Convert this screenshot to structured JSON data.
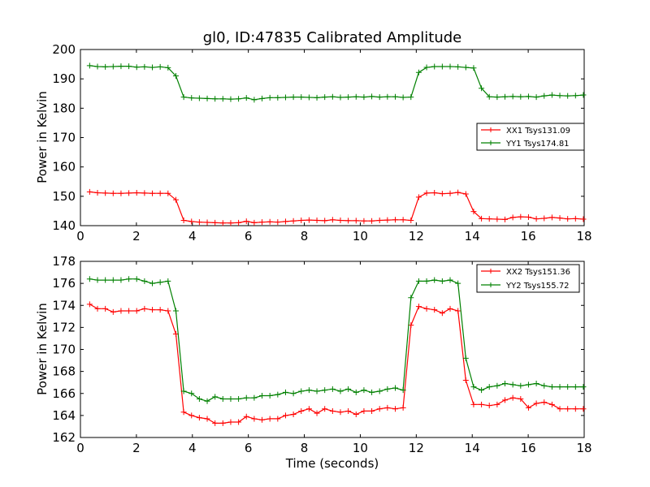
{
  "chart_data": [
    {
      "type": "line",
      "title": "gl0, ID:47835 Calibrated Amplitude",
      "xlabel": "",
      "ylabel": "Power in Kelvin",
      "xlim": [
        0,
        18
      ],
      "ylim": [
        140,
        200
      ],
      "xticks": [
        0,
        2,
        4,
        6,
        8,
        10,
        12,
        14,
        16,
        18
      ],
      "yticks": [
        140,
        150,
        160,
        170,
        180,
        190,
        200
      ],
      "grid": false,
      "legend_position": "right",
      "series": [
        {
          "name": "XX1 Tsys131.09",
          "color": "#ff0000",
          "x": [
            0.33,
            0.61,
            0.89,
            1.17,
            1.45,
            1.73,
            2.01,
            2.29,
            2.57,
            2.85,
            3.13,
            3.41,
            3.69,
            3.97,
            4.25,
            4.53,
            4.81,
            5.09,
            5.37,
            5.65,
            5.93,
            6.21,
            6.49,
            6.77,
            7.05,
            7.33,
            7.61,
            7.89,
            8.17,
            8.45,
            8.73,
            9.01,
            9.29,
            9.57,
            9.85,
            10.13,
            10.41,
            10.69,
            10.97,
            11.25,
            11.53,
            11.81,
            12.09,
            12.37,
            12.65,
            12.93,
            13.21,
            13.49,
            13.77,
            14.05,
            14.33,
            14.61,
            14.89,
            15.17,
            15.45,
            15.73,
            16.01,
            16.29,
            16.57,
            16.85,
            17.13,
            17.41,
            17.69,
            17.97
          ],
          "y": [
            151.5,
            151.2,
            151.1,
            151.0,
            151.0,
            151.1,
            151.2,
            151.1,
            151.0,
            151.0,
            151.0,
            148.8,
            141.8,
            141.4,
            141.2,
            141.1,
            141.0,
            140.9,
            140.9,
            141.0,
            141.5,
            141.0,
            141.2,
            141.3,
            141.2,
            141.4,
            141.6,
            141.8,
            141.9,
            141.8,
            141.7,
            142.0,
            141.8,
            141.7,
            141.7,
            141.6,
            141.6,
            141.8,
            141.9,
            142.0,
            142.0,
            141.8,
            149.7,
            151.1,
            151.2,
            150.9,
            151.0,
            151.3,
            150.8,
            144.8,
            142.4,
            142.3,
            142.2,
            142.1,
            142.8,
            143.0,
            142.9,
            142.3,
            142.5,
            142.8,
            142.6,
            142.3,
            142.4,
            142.2
          ]
        },
        {
          "name": "YY1 Tsys174.81",
          "color": "#008000",
          "x": [
            0.33,
            0.61,
            0.89,
            1.17,
            1.45,
            1.73,
            2.01,
            2.29,
            2.57,
            2.85,
            3.13,
            3.41,
            3.69,
            3.97,
            4.25,
            4.53,
            4.81,
            5.09,
            5.37,
            5.65,
            5.93,
            6.21,
            6.49,
            6.77,
            7.05,
            7.33,
            7.61,
            7.89,
            8.17,
            8.45,
            8.73,
            9.01,
            9.29,
            9.57,
            9.85,
            10.13,
            10.41,
            10.69,
            10.97,
            11.25,
            11.53,
            11.81,
            12.09,
            12.37,
            12.65,
            12.93,
            13.21,
            13.49,
            13.77,
            14.05,
            14.33,
            14.61,
            14.89,
            15.17,
            15.45,
            15.73,
            16.01,
            16.29,
            16.57,
            16.85,
            17.13,
            17.41,
            17.69,
            17.97
          ],
          "y": [
            194.5,
            194.2,
            194.1,
            194.2,
            194.3,
            194.3,
            194.0,
            194.1,
            193.9,
            194.1,
            193.8,
            191.0,
            183.8,
            183.5,
            183.4,
            183.3,
            183.2,
            183.2,
            183.1,
            183.2,
            183.5,
            182.9,
            183.3,
            183.6,
            183.6,
            183.7,
            183.8,
            183.8,
            183.7,
            183.6,
            183.8,
            183.9,
            183.7,
            183.8,
            183.9,
            183.8,
            184.0,
            183.8,
            183.9,
            183.9,
            183.7,
            183.8,
            192.2,
            193.9,
            194.2,
            194.2,
            194.2,
            194.1,
            193.9,
            193.7,
            186.8,
            183.9,
            183.8,
            183.9,
            184.0,
            183.9,
            184.0,
            183.8,
            184.2,
            184.5,
            184.3,
            184.2,
            184.3,
            184.5
          ]
        }
      ]
    },
    {
      "type": "line",
      "title": "",
      "xlabel": "Time (seconds)",
      "ylabel": "Power in Kelvin",
      "xlim": [
        0,
        18
      ],
      "ylim": [
        162,
        178
      ],
      "xticks": [
        0,
        2,
        4,
        6,
        8,
        10,
        12,
        14,
        16,
        18
      ],
      "yticks": [
        162,
        164,
        166,
        168,
        170,
        172,
        174,
        176,
        178
      ],
      "grid": false,
      "legend_position": "top-right",
      "series": [
        {
          "name": "XX2 Tsys151.36",
          "color": "#ff0000",
          "x": [
            0.33,
            0.61,
            0.89,
            1.17,
            1.45,
            1.73,
            2.01,
            2.29,
            2.57,
            2.85,
            3.13,
            3.41,
            3.69,
            3.97,
            4.25,
            4.53,
            4.81,
            5.09,
            5.37,
            5.65,
            5.93,
            6.21,
            6.49,
            6.77,
            7.05,
            7.33,
            7.61,
            7.89,
            8.17,
            8.45,
            8.73,
            9.01,
            9.29,
            9.57,
            9.85,
            10.13,
            10.41,
            10.69,
            10.97,
            11.25,
            11.53,
            11.81,
            12.09,
            12.37,
            12.65,
            12.93,
            13.21,
            13.49,
            13.77,
            14.05,
            14.33,
            14.61,
            14.89,
            15.17,
            15.45,
            15.73,
            16.01,
            16.29,
            16.57,
            16.85,
            17.13,
            17.41,
            17.69,
            17.97
          ],
          "y": [
            174.1,
            173.7,
            173.7,
            173.4,
            173.5,
            173.5,
            173.5,
            173.7,
            173.6,
            173.6,
            173.5,
            171.4,
            164.3,
            164.0,
            163.8,
            163.7,
            163.3,
            163.3,
            163.4,
            163.4,
            163.9,
            163.7,
            163.6,
            163.7,
            163.7,
            164.0,
            164.1,
            164.4,
            164.6,
            164.2,
            164.6,
            164.4,
            164.3,
            164.4,
            164.1,
            164.4,
            164.4,
            164.6,
            164.7,
            164.6,
            164.7,
            172.2,
            173.9,
            173.7,
            173.6,
            173.3,
            173.7,
            173.5,
            167.2,
            165.0,
            165.0,
            164.9,
            165.0,
            165.4,
            165.6,
            165.5,
            164.7,
            165.1,
            165.2,
            165.0,
            164.6,
            164.6,
            164.6,
            164.6
          ]
        },
        {
          "name": "YY2 Tsys155.72",
          "color": "#008000",
          "x": [
            0.33,
            0.61,
            0.89,
            1.17,
            1.45,
            1.73,
            2.01,
            2.29,
            2.57,
            2.85,
            3.13,
            3.41,
            3.69,
            3.97,
            4.25,
            4.53,
            4.81,
            5.09,
            5.37,
            5.65,
            5.93,
            6.21,
            6.49,
            6.77,
            7.05,
            7.33,
            7.61,
            7.89,
            8.17,
            8.45,
            8.73,
            9.01,
            9.29,
            9.57,
            9.85,
            10.13,
            10.41,
            10.69,
            10.97,
            11.25,
            11.53,
            11.81,
            12.09,
            12.37,
            12.65,
            12.93,
            13.21,
            13.49,
            13.77,
            14.05,
            14.33,
            14.61,
            14.89,
            15.17,
            15.45,
            15.73,
            16.01,
            16.29,
            16.57,
            16.85,
            17.13,
            17.41,
            17.69,
            17.97
          ],
          "y": [
            176.4,
            176.3,
            176.3,
            176.3,
            176.3,
            176.4,
            176.4,
            176.2,
            176.0,
            176.1,
            176.2,
            173.5,
            166.2,
            166.0,
            165.5,
            165.3,
            165.7,
            165.5,
            165.5,
            165.5,
            165.6,
            165.6,
            165.8,
            165.8,
            165.9,
            166.1,
            166.0,
            166.2,
            166.3,
            166.2,
            166.3,
            166.4,
            166.2,
            166.4,
            166.1,
            166.3,
            166.1,
            166.2,
            166.4,
            166.5,
            166.3,
            174.7,
            176.2,
            176.2,
            176.3,
            176.2,
            176.3,
            176.0,
            169.2,
            166.6,
            166.3,
            166.6,
            166.7,
            166.9,
            166.8,
            166.7,
            166.8,
            166.9,
            166.7,
            166.6,
            166.6,
            166.6,
            166.6,
            166.6
          ]
        }
      ]
    }
  ]
}
